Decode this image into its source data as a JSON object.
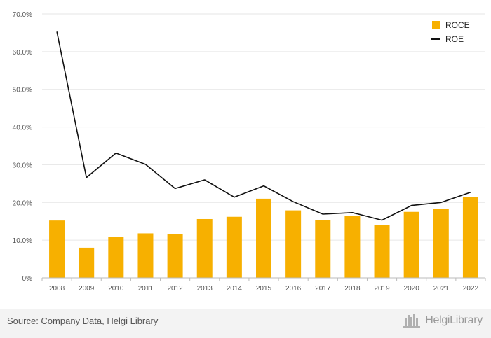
{
  "chart_data": {
    "type": "bar",
    "categories": [
      "2008",
      "2009",
      "2010",
      "2011",
      "2012",
      "2013",
      "2014",
      "2015",
      "2016",
      "2017",
      "2018",
      "2019",
      "2020",
      "2021",
      "2022"
    ],
    "series": [
      {
        "name": "ROCE",
        "type": "bar",
        "color": "#f7b000",
        "values": [
          15.2,
          8.0,
          10.8,
          11.8,
          11.6,
          15.6,
          16.2,
          21.0,
          17.9,
          15.3,
          16.4,
          14.1,
          17.5,
          18.2,
          21.4
        ]
      },
      {
        "name": "ROE",
        "type": "line",
        "color": "#111111",
        "values": [
          65.3,
          26.6,
          33.1,
          30.1,
          23.7,
          26.0,
          21.4,
          24.4,
          20.2,
          16.9,
          17.3,
          15.3,
          19.2,
          20.0,
          22.7
        ]
      }
    ],
    "ylim": [
      0,
      70
    ],
    "yticks": [
      "0%",
      "10.0%",
      "20.0%",
      "30.0%",
      "40.0%",
      "50.0%",
      "60.0%",
      "70.0%"
    ],
    "ytick_values": [
      0,
      10,
      20,
      30,
      40,
      50,
      60,
      70
    ],
    "grid": true,
    "legend": "top-right"
  },
  "footer": {
    "source": "Source: Company Data, Helgi Library",
    "brand": "HelgiLibrary"
  },
  "colors": {
    "grid": "#e6e6e6",
    "axis": "#bbbbbb",
    "footer_bg": "#f3f3f3"
  }
}
